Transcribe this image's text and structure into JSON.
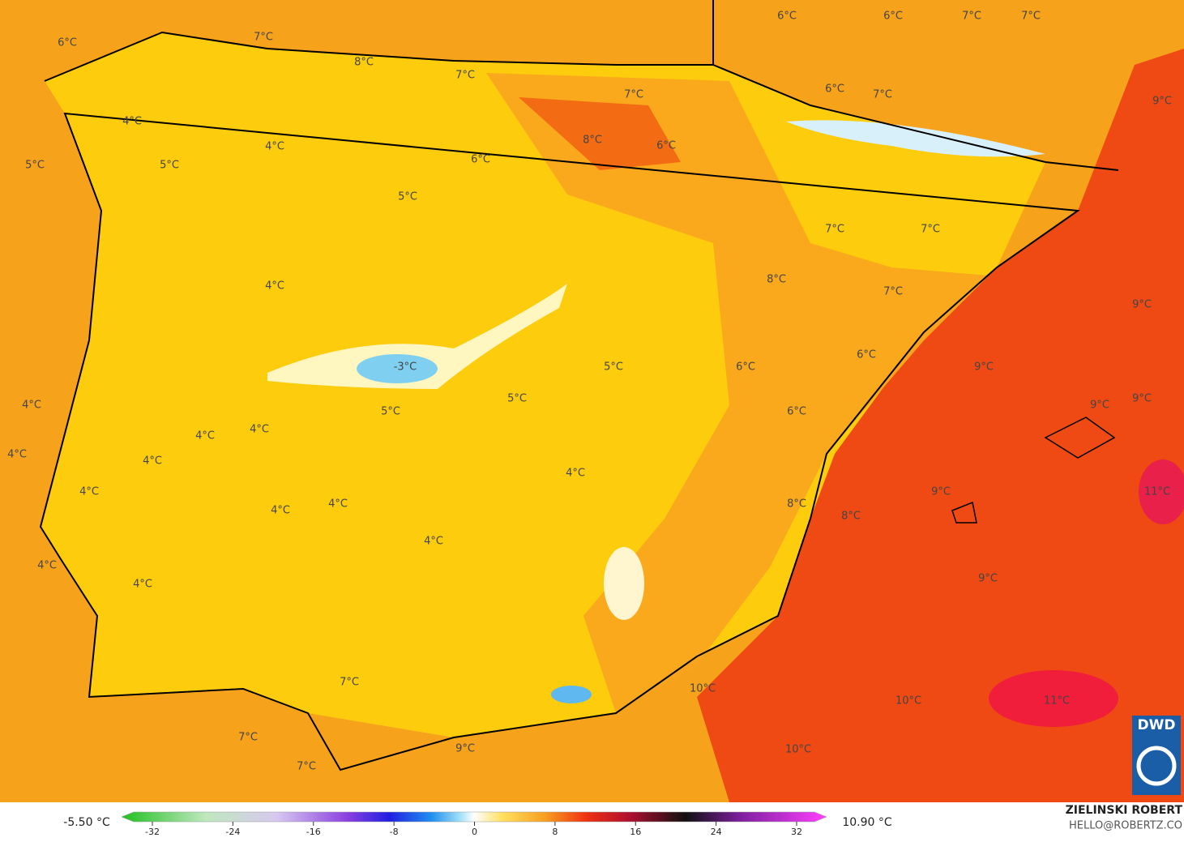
{
  "labels": [
    "6°C",
    "7°C",
    "8°C",
    "7°C",
    "7°C",
    "4°C",
    "8°C",
    "6°C",
    "6°C",
    "4°C",
    "5°C",
    "5°C",
    "5°C",
    "6°C",
    "6°C",
    "7°C",
    "7°C",
    "6°C",
    "7°C",
    "9°C",
    "7°C",
    "7°C",
    "8°C",
    "7°C",
    "4°C",
    "9°C",
    "-3°C",
    "5°C",
    "6°C",
    "6°C",
    "9°C",
    "4°C",
    "5°C",
    "5°C",
    "6°C",
    "9°C",
    "9°C",
    "4°C",
    "4°C",
    "4°C",
    "4°C",
    "4°C",
    "4°C",
    "9°C",
    "11°C",
    "4°C",
    "4°C",
    "8°C",
    "8°C",
    "4°C",
    "4°C",
    "9°C",
    "4°C",
    "7°C",
    "10°C",
    "10°C",
    "11°C",
    "7°C",
    "9°C",
    "10°C",
    "7°C"
  ],
  "legend": {
    "min": "-5.50 °C",
    "max": "10.90 °C",
    "ticks": [
      -32,
      -24,
      -16,
      -8,
      0,
      8,
      16,
      24,
      32
    ]
  },
  "credit": {
    "name": "ZIELINSKI ROBERT",
    "email": "HELLO@ROBERTZ.CO"
  },
  "logo": "DWD"
}
